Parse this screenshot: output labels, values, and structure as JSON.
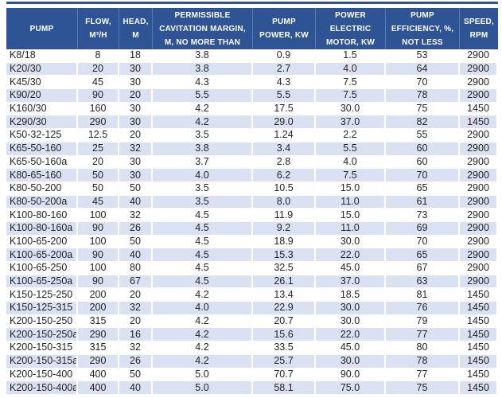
{
  "colors": {
    "header_bg": "#2F5496",
    "header_text": "#FFFFFF",
    "row_alt_bg": "#D9E1F2",
    "body_text": "#242424"
  },
  "chart_data": {
    "type": "table",
    "title": "",
    "legend": "none",
    "grid": "white gridlines on alternating blue-tinted rows",
    "column_keys": [
      "pump",
      "flow",
      "head",
      "cavitation",
      "power",
      "motor",
      "efficiency",
      "speed"
    ],
    "columns": [
      "PUMP",
      "FLOW, M³/H",
      "HEAD, M",
      "PERMISSIBLE CAVITATION MARGIN, M, NO MORE THAN",
      "PUMP POWER, KW",
      "POWER ELECTRIC MOTOR, KW",
      "PUMP EFFICIENCY, %, NOT LESS",
      "SPEED, RPM"
    ],
    "rows": [
      {
        "pump": "K8/18",
        "flow": "8",
        "head": "18",
        "cavitation": "3.8",
        "power": "0.9",
        "motor": "1.5",
        "efficiency": "53",
        "speed": "2900"
      },
      {
        "pump": "K20/30",
        "flow": "20",
        "head": "30",
        "cavitation": "3.8",
        "power": "2.7",
        "motor": "4.0",
        "efficiency": "64",
        "speed": "2900"
      },
      {
        "pump": "K45/30",
        "flow": "45",
        "head": "30",
        "cavitation": "4.3",
        "power": "4.3",
        "motor": "7.5",
        "efficiency": "70",
        "speed": "2900"
      },
      {
        "pump": "K90/20",
        "flow": "90",
        "head": "20",
        "cavitation": "5.5",
        "power": "5.5",
        "motor": "7.5",
        "efficiency": "78",
        "speed": "2900"
      },
      {
        "pump": "K160/30",
        "flow": "160",
        "head": "30",
        "cavitation": "4.2",
        "power": "17.5",
        "motor": "30.0",
        "efficiency": "75",
        "speed": "1450"
      },
      {
        "pump": "K290/30",
        "flow": "290",
        "head": "30",
        "cavitation": "4.2",
        "power": "29.0",
        "motor": "37.0",
        "efficiency": "82",
        "speed": "1450"
      },
      {
        "pump": "K50-32-125",
        "flow": "12.5",
        "head": "20",
        "cavitation": "3.5",
        "power": "1.24",
        "motor": "2.2",
        "efficiency": "55",
        "speed": "2900"
      },
      {
        "pump": "K65-50-160",
        "flow": "25",
        "head": "32",
        "cavitation": "3.8",
        "power": "3.4",
        "motor": "5.5",
        "efficiency": "60",
        "speed": "2900"
      },
      {
        "pump": "K65-50-160a",
        "flow": "20",
        "head": "30",
        "cavitation": "3.7",
        "power": "2.8",
        "motor": "4.0",
        "efficiency": "60",
        "speed": "2900"
      },
      {
        "pump": "K80-65-160",
        "flow": "50",
        "head": "30",
        "cavitation": "4.0",
        "power": "6.2",
        "motor": "7.5",
        "efficiency": "70",
        "speed": "2900"
      },
      {
        "pump": "K80-50-200",
        "flow": "50",
        "head": "50",
        "cavitation": "3.5",
        "power": "10.5",
        "motor": "15.0",
        "efficiency": "65",
        "speed": "2900"
      },
      {
        "pump": "K80-50-200a",
        "flow": "45",
        "head": "40",
        "cavitation": "3.5",
        "power": "8.0",
        "motor": "11.0",
        "efficiency": "61",
        "speed": "2900"
      },
      {
        "pump": "K100-80-160",
        "flow": "100",
        "head": "32",
        "cavitation": "4.5",
        "power": "11.9",
        "motor": "15.0",
        "efficiency": "73",
        "speed": "2900"
      },
      {
        "pump": "K100-80-160a",
        "flow": "90",
        "head": "26",
        "cavitation": "4.5",
        "power": "9.2",
        "motor": "11.0",
        "efficiency": "69",
        "speed": "2900"
      },
      {
        "pump": "K100-65-200",
        "flow": "100",
        "head": "50",
        "cavitation": "4.5",
        "power": "18.9",
        "motor": "30.0",
        "efficiency": "70",
        "speed": "2900"
      },
      {
        "pump": "K100-65-200a",
        "flow": "90",
        "head": "40",
        "cavitation": "4.5",
        "power": "15.3",
        "motor": "22.0",
        "efficiency": "65",
        "speed": "2900"
      },
      {
        "pump": "K100-65-250",
        "flow": "100",
        "head": "80",
        "cavitation": "4.5",
        "power": "32.5",
        "motor": "45.0",
        "efficiency": "67",
        "speed": "2900"
      },
      {
        "pump": "K100-65-250a",
        "flow": "90",
        "head": "67",
        "cavitation": "4.5",
        "power": "26.1",
        "motor": "37.0",
        "efficiency": "63",
        "speed": "2900"
      },
      {
        "pump": "K150-125-250",
        "flow": "200",
        "head": "20",
        "cavitation": "4.2",
        "power": "13.4",
        "motor": "18.5",
        "efficiency": "81",
        "speed": "1450"
      },
      {
        "pump": "K150-125-315",
        "flow": "200",
        "head": "32",
        "cavitation": "4.0",
        "power": "22.9",
        "motor": "30.0",
        "efficiency": "76",
        "speed": "1450"
      },
      {
        "pump": "K200-150-250",
        "flow": "315",
        "head": "20",
        "cavitation": "4.2",
        "power": "20.7",
        "motor": "30.0",
        "efficiency": "79",
        "speed": "1450"
      },
      {
        "pump": "K200-150-250a",
        "flow": "290",
        "head": "16",
        "cavitation": "4.2",
        "power": "15.6",
        "motor": "22.0",
        "efficiency": "77",
        "speed": "1450"
      },
      {
        "pump": "K200-150-315",
        "flow": "315",
        "head": "32",
        "cavitation": "4.2",
        "power": "33.5",
        "motor": "45.0",
        "efficiency": "80",
        "speed": "1450"
      },
      {
        "pump": "K200-150-315a",
        "flow": "290",
        "head": "26",
        "cavitation": "4.2",
        "power": "25.7",
        "motor": "30.0",
        "efficiency": "78",
        "speed": "1450"
      },
      {
        "pump": "K200-150-400",
        "flow": "400",
        "head": "50",
        "cavitation": "5.0",
        "power": "70.7",
        "motor": "90.0",
        "efficiency": "77",
        "speed": "1450"
      },
      {
        "pump": "K200-150-400a",
        "flow": "400",
        "head": "40",
        "cavitation": "5.0",
        "power": "58.1",
        "motor": "75.0",
        "efficiency": "75",
        "speed": "1450"
      }
    ]
  }
}
